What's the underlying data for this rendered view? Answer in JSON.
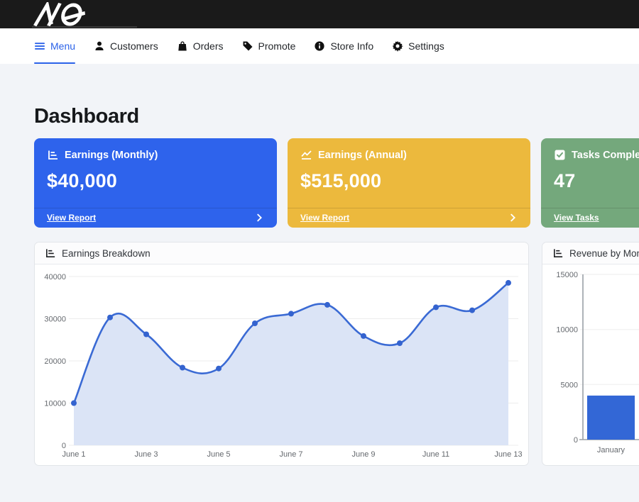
{
  "topbar": {
    "logo_text": "AQ"
  },
  "nav": {
    "items": [
      {
        "label": "Menu",
        "icon": "hamburger-icon",
        "active": true
      },
      {
        "label": "Customers",
        "icon": "person-icon",
        "active": false
      },
      {
        "label": "Orders",
        "icon": "bag-icon",
        "active": false
      },
      {
        "label": "Promote",
        "icon": "tag-icon",
        "active": false
      },
      {
        "label": "Store Info",
        "icon": "info-icon",
        "active": false
      },
      {
        "label": "Settings",
        "icon": "gear-icon",
        "active": false
      }
    ]
  },
  "page": {
    "title": "Dashboard"
  },
  "stat_cards": [
    {
      "title": "Earnings (Monthly)",
      "value": "$40,000",
      "link_label": "View Report",
      "color": "#2e63ec",
      "icon": "bar-chart-icon"
    },
    {
      "title": "Earnings (Annual)",
      "value": "$515,000",
      "link_label": "View Report",
      "color": "#ecb93d",
      "icon": "line-chart-icon"
    },
    {
      "title": "Tasks Completed",
      "value": "47",
      "link_label": "View Tasks",
      "color": "#74a87c",
      "icon": "check-square-icon"
    }
  ],
  "chart_data": [
    {
      "type": "area",
      "title": "Earnings Breakdown",
      "x": [
        "June 1",
        "June 2",
        "June 3",
        "June 4",
        "June 5",
        "June 6",
        "June 7",
        "June 8",
        "June 9",
        "June 10",
        "June 11",
        "June 12",
        "June 13"
      ],
      "values": [
        10000,
        30300,
        26300,
        18400,
        18200,
        28900,
        31200,
        33300,
        25900,
        24200,
        32700,
        32000,
        38500
      ],
      "xlabel": "",
      "ylabel": "",
      "ylim": [
        0,
        40000
      ],
      "yticks": [
        0,
        10000,
        20000,
        30000,
        40000
      ],
      "x_tick_labels": [
        "June 1",
        "June 3",
        "June 5",
        "June 7",
        "June 9",
        "June 11",
        "June 13"
      ],
      "grid": true,
      "legend": false,
      "line_color": "#3a6ad4",
      "fill_color": "#dbe4f6",
      "point_color": "#3463cf"
    },
    {
      "type": "bar",
      "title": "Revenue by Month",
      "categories": [
        "January"
      ],
      "values": [
        4000
      ],
      "xlabel": "",
      "ylabel": "",
      "ylim": [
        0,
        15000
      ],
      "yticks": [
        0,
        5000,
        10000,
        15000
      ],
      "grid": true,
      "legend": false,
      "bar_color": "#3367d6"
    }
  ]
}
